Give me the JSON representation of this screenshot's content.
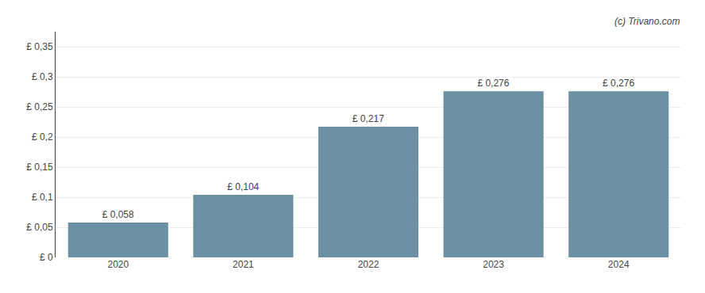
{
  "chart_data": {
    "type": "bar",
    "categories": [
      "2020",
      "2021",
      "2022",
      "2023",
      "2024"
    ],
    "values": [
      0.058,
      0.104,
      0.217,
      0.276,
      0.276
    ],
    "value_labels": [
      "£ 0,058",
      "£ 0,104",
      "£ 0,217",
      "£ 0,276",
      "£ 0,276"
    ],
    "data_labels": true,
    "color": "#6b8fa3",
    "ylim": [
      0,
      0.375
    ],
    "yticks": [
      {
        "value": 0,
        "label": "£ 0"
      },
      {
        "value": 0.05,
        "label": "£ 0,05"
      },
      {
        "value": 0.1,
        "label": "£ 0,1"
      },
      {
        "value": 0.15,
        "label": "£ 0,15"
      },
      {
        "value": 0.2,
        "label": "£ 0,2"
      },
      {
        "value": 0.25,
        "label": "£ 0,25"
      },
      {
        "value": 0.3,
        "label": "£ 0,3"
      },
      {
        "value": 0.35,
        "label": "£ 0,35"
      }
    ],
    "grid": true,
    "annotations": [
      "(c) Trivano.com"
    ]
  }
}
